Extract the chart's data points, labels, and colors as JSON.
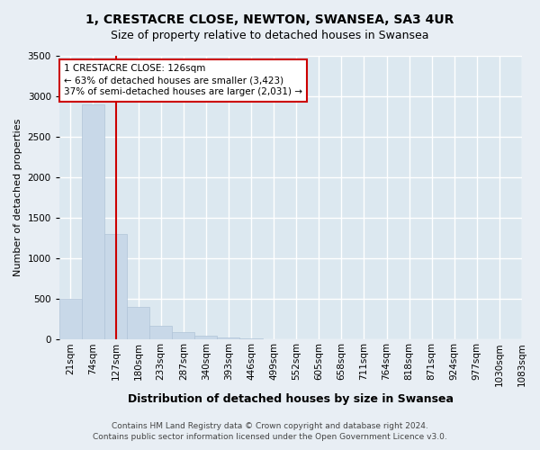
{
  "title_line1": "1, CRESTACRE CLOSE, NEWTON, SWANSEA, SA3 4UR",
  "title_line2": "Size of property relative to detached houses in Swansea",
  "xlabel": "Distribution of detached houses by size in Swansea",
  "ylabel": "Number of detached properties",
  "footer_line1": "Contains HM Land Registry data © Crown copyright and database right 2024.",
  "footer_line2": "Contains public sector information licensed under the Open Government Licence v3.0.",
  "bin_labels": [
    "21sqm",
    "74sqm",
    "127sqm",
    "180sqm",
    "233sqm",
    "287sqm",
    "340sqm",
    "393sqm",
    "446sqm",
    "499sqm",
    "552sqm",
    "605sqm",
    "658sqm",
    "711sqm",
    "764sqm",
    "818sqm",
    "871sqm",
    "924sqm",
    "977sqm",
    "1030sqm",
    "1083sqm"
  ],
  "bar_values": [
    500,
    2900,
    1300,
    400,
    170,
    95,
    50,
    25,
    12,
    6,
    3,
    1,
    0,
    0,
    0,
    0,
    0,
    0,
    0,
    0
  ],
  "bar_color": "#c8d8e8",
  "bar_edge_color": "#b0c4d8",
  "property_bin_index": 2,
  "property_line_color": "#cc0000",
  "annotation_line1": "1 CRESTACRE CLOSE: 126sqm",
  "annotation_line2": "← 63% of detached houses are smaller (3,423)",
  "annotation_line3": "37% of semi-detached houses are larger (2,031) →",
  "annotation_box_color": "#ffffff",
  "annotation_border_color": "#cc0000",
  "ylim": [
    0,
    3500
  ],
  "yticks": [
    0,
    500,
    1000,
    1500,
    2000,
    2500,
    3000,
    3500
  ],
  "background_color": "#e8eef4",
  "plot_background_color": "#dce8f0",
  "grid_color": "#ffffff",
  "title1_fontsize": 10,
  "title2_fontsize": 9,
  "ylabel_fontsize": 8,
  "xlabel_fontsize": 9,
  "tick_fontsize": 7.5,
  "footer_fontsize": 6.5
}
